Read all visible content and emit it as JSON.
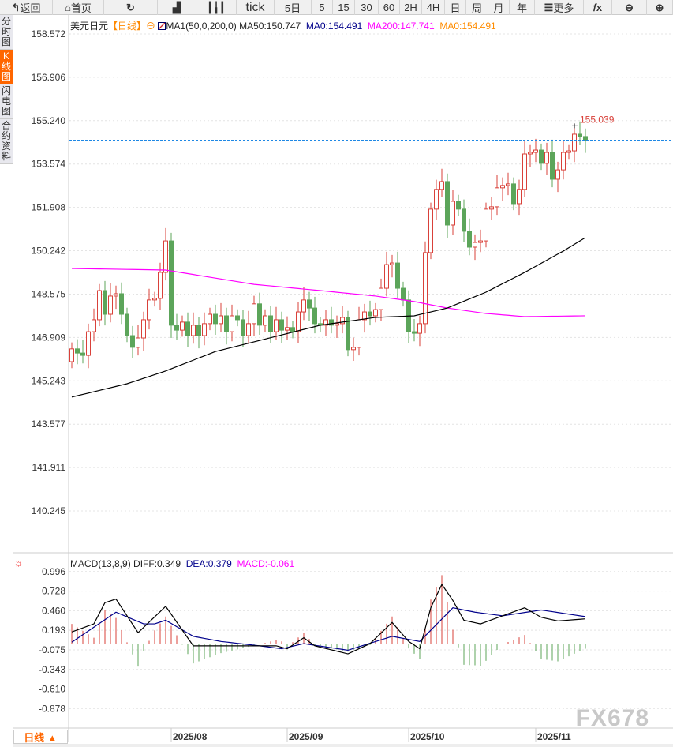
{
  "toolbar": [
    {
      "label": "返回",
      "icon": "back-arrow-icon",
      "w": 67
    },
    {
      "label": "首页",
      "icon": "home-icon",
      "w": 65
    },
    {
      "label": "",
      "icon": "refresh-icon",
      "w": 68
    },
    {
      "label": "",
      "icon": "indicator-chart-icon",
      "w": 49
    },
    {
      "label": "",
      "icon": "candlestick-icon",
      "w": 51
    },
    {
      "label": "tick",
      "icon": "",
      "w": 48
    },
    {
      "label": "5日",
      "icon": "",
      "w": 47
    },
    {
      "label": "5",
      "icon": "",
      "w": 27
    },
    {
      "label": "15",
      "icon": "",
      "w": 28
    },
    {
      "label": "30",
      "icon": "",
      "w": 30
    },
    {
      "label": "60",
      "icon": "",
      "w": 27
    },
    {
      "label": "2H",
      "icon": "",
      "w": 28
    },
    {
      "label": "4H",
      "icon": "",
      "w": 29
    },
    {
      "label": "日",
      "icon": "",
      "w": 27
    },
    {
      "label": "周",
      "icon": "",
      "w": 28
    },
    {
      "label": "月",
      "icon": "",
      "w": 27
    },
    {
      "label": "年",
      "icon": "",
      "w": 32
    },
    {
      "label": "更多",
      "icon": "menu-icon",
      "w": 62
    },
    {
      "label": "",
      "icon": "fx-icon",
      "w": 36
    },
    {
      "label": "",
      "icon": "zoom-out-icon",
      "w": 44
    },
    {
      "label": "",
      "icon": "zoom-in-icon",
      "w": 33
    }
  ],
  "sidebar": [
    {
      "label": "分时图",
      "active": false
    },
    {
      "label": "K线图",
      "active": true
    },
    {
      "label": "闪电图",
      "active": false
    },
    {
      "label": "合约资料",
      "active": false
    }
  ],
  "legend": {
    "symbol": "美元日元",
    "period": "【日线】",
    "ma_name": "MA1(50,0,200,0)",
    "ma50": "MA50:150.747",
    "ma0a": "MA0:154.491",
    "ma200": "MA200:147.741",
    "ma0b": "MA0:154.491"
  },
  "macd_legend": {
    "name": "MACD(13,8,9)",
    "diff": "DIFF:0.349",
    "dea": "DEA:0.379",
    "macd": "MACD:-0.061"
  },
  "period_button": "日线 ▲",
  "watermark": "FX678",
  "colors": {
    "up": "#d9413a",
    "down": "#5ca55a",
    "ma50": "#000000",
    "ma200": "#ff00ff",
    "ma0": "#ff8c00",
    "dea": "#00008b",
    "current_line": "#1e88e5"
  },
  "chart_data": [
    {
      "type": "candlestick",
      "ylim": [
        140.245,
        158.572
      ],
      "y_ticks": [
        "158.572",
        "156.906",
        "155.240",
        "153.574",
        "151.908",
        "150.242",
        "148.575",
        "146.909",
        "145.243",
        "143.577",
        "141.911",
        "140.245"
      ],
      "first_open": 145.98,
      "closes": [
        146.47,
        146.31,
        146.22,
        147.13,
        147.59,
        148.71,
        147.8,
        148.5,
        148.59,
        147.8,
        146.98,
        146.53,
        146.89,
        147.59,
        148.35,
        148.41,
        149.41,
        150.62,
        147.38,
        147.19,
        147.5,
        146.98,
        147.38,
        146.98,
        147.44,
        147.8,
        147.44,
        147.74,
        147.13,
        147.74,
        147.59,
        146.98,
        147.44,
        148.2,
        147.38,
        147.74,
        147.13,
        147.59,
        147.19,
        147.29,
        147.13,
        147.89,
        148.35,
        148.04,
        147.44,
        147.38,
        147.59,
        147.38,
        147.44,
        147.68,
        146.44,
        146.53,
        147.59,
        147.89,
        147.74,
        147.98,
        148.8,
        149.71,
        149.77,
        148.8,
        148.35,
        147.13,
        147.07,
        147.44,
        150.17,
        151.84,
        152.6,
        152.9,
        151.23,
        152.14,
        151.84,
        150.99,
        150.38,
        150.56,
        150.62,
        151.84,
        151.93,
        152.66,
        152.75,
        152.81,
        152.05,
        152.6,
        153.96,
        154.02,
        154.11,
        153.6,
        154.02,
        152.99,
        153.35,
        154.02,
        154.08,
        154.72,
        154.63,
        154.49
      ],
      "ma50": [
        [
          0,
          144.62
        ],
        [
          10,
          145.13
        ],
        [
          17,
          145.62
        ],
        [
          26,
          146.37
        ],
        [
          33,
          146.74
        ],
        [
          45,
          147.38
        ],
        [
          55,
          147.68
        ],
        [
          62,
          147.74
        ],
        [
          68,
          148.04
        ],
        [
          75,
          148.65
        ],
        [
          82,
          149.41
        ],
        [
          89,
          150.23
        ],
        [
          93,
          150.747
        ]
      ],
      "ma200": [
        [
          0,
          149.56
        ],
        [
          17,
          149.5
        ],
        [
          33,
          148.95
        ],
        [
          45,
          148.71
        ],
        [
          55,
          148.5
        ],
        [
          62,
          148.29
        ],
        [
          68,
          148.04
        ],
        [
          75,
          147.83
        ],
        [
          82,
          147.71
        ],
        [
          93,
          147.741
        ]
      ],
      "current_price": 154.491,
      "high_label": "155.039",
      "high_value": 155.039,
      "high_index": 91,
      "x_ticks": [
        {
          "index": 18,
          "label": "2025/08"
        },
        {
          "index": 39,
          "label": "2025/09"
        },
        {
          "index": 61,
          "label": "2025/10"
        },
        {
          "index": 84,
          "label": "2025/11"
        }
      ]
    },
    {
      "type": "macd",
      "ylim": [
        -1.0,
        1.1
      ],
      "y_ticks": [
        "0.996",
        "0.728",
        "0.460",
        "0.193",
        "-0.075",
        "-0.343",
        "-0.610",
        "-0.878"
      ],
      "diff": [
        [
          0,
          0.17
        ],
        [
          4,
          0.28
        ],
        [
          6,
          0.57
        ],
        [
          8,
          0.62
        ],
        [
          12,
          0.16
        ],
        [
          17,
          0.52
        ],
        [
          22,
          -0.02
        ],
        [
          37,
          -0.02
        ],
        [
          39,
          -0.06
        ],
        [
          42,
          0.09
        ],
        [
          44,
          -0.02
        ],
        [
          50,
          -0.13
        ],
        [
          54,
          0.01
        ],
        [
          58,
          0.3
        ],
        [
          61,
          0.04
        ],
        [
          63,
          -0.06
        ],
        [
          65,
          0.5
        ],
        [
          67,
          0.82
        ],
        [
          69,
          0.6
        ],
        [
          71,
          0.33
        ],
        [
          74,
          0.28
        ],
        [
          78,
          0.39
        ],
        [
          82,
          0.5
        ],
        [
          85,
          0.37
        ],
        [
          88,
          0.32
        ],
        [
          93,
          0.349
        ]
      ],
      "dea": [
        [
          0,
          0.03
        ],
        [
          8,
          0.44
        ],
        [
          13,
          0.28
        ],
        [
          15,
          0.28
        ],
        [
          17,
          0.33
        ],
        [
          22,
          0.11
        ],
        [
          27,
          0.04
        ],
        [
          34,
          -0.02
        ],
        [
          38,
          -0.06
        ],
        [
          42,
          0.01
        ],
        [
          50,
          -0.08
        ],
        [
          58,
          0.11
        ],
        [
          63,
          0.04
        ],
        [
          69,
          0.5
        ],
        [
          73,
          0.44
        ],
        [
          78,
          0.39
        ],
        [
          85,
          0.47
        ],
        [
          93,
          0.379
        ]
      ]
    }
  ]
}
